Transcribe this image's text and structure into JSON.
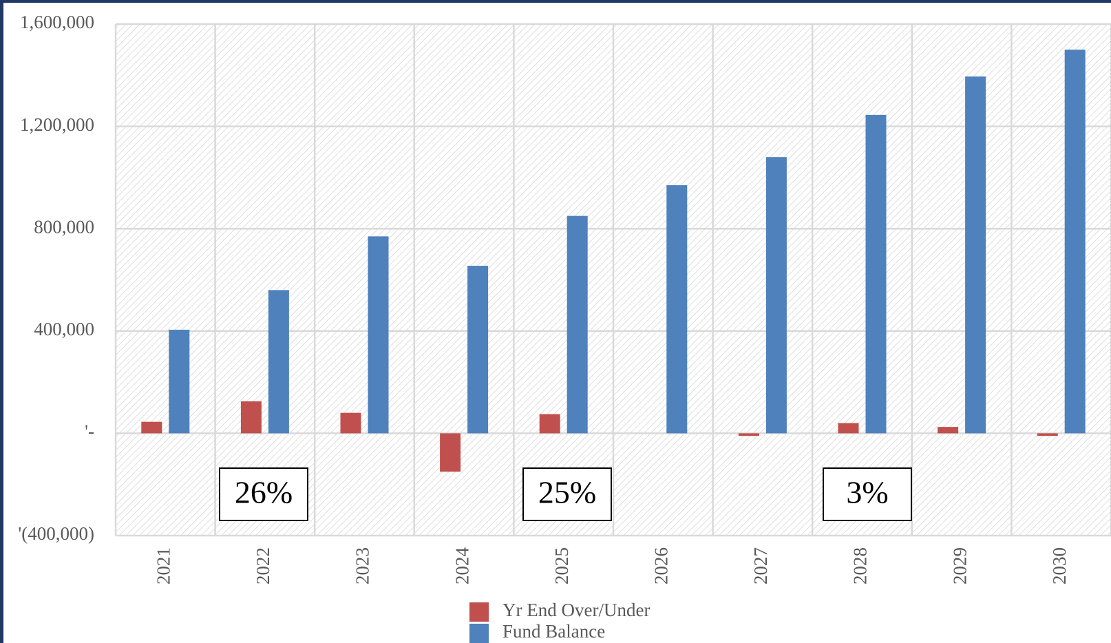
{
  "chart_data": {
    "type": "bar",
    "categories": [
      "2021",
      "2022",
      "2023",
      "2024",
      "2025",
      "2026",
      "2027",
      "2028",
      "2029",
      "2030"
    ],
    "series": [
      {
        "name": "Yr End Over/Under",
        "color": "#c0504d",
        "values": [
          45000,
          125000,
          80000,
          -150000,
          75000,
          0,
          -10000,
          40000,
          25000,
          -10000
        ]
      },
      {
        "name": "Fund Balance",
        "color": "#4f81bd",
        "values": [
          405000,
          560000,
          770000,
          655000,
          850000,
          970000,
          1080000,
          1245000,
          1395000,
          1500000
        ]
      }
    ],
    "ylim": [
      -400000,
      1600000
    ],
    "yticks": [
      {
        "value": -400000,
        "label": "'(400,000)"
      },
      {
        "value": 0,
        "label": "'-"
      },
      {
        "value": 400000,
        "label": "400,000"
      },
      {
        "value": 800000,
        "label": "800,000"
      },
      {
        "value": 1200000,
        "label": "1,200,000"
      },
      {
        "value": 1600000,
        "label": "1,600,000"
      }
    ],
    "grid": true,
    "legend": "bottom",
    "annotations": [
      "26%",
      "25%",
      "3%"
    ]
  }
}
